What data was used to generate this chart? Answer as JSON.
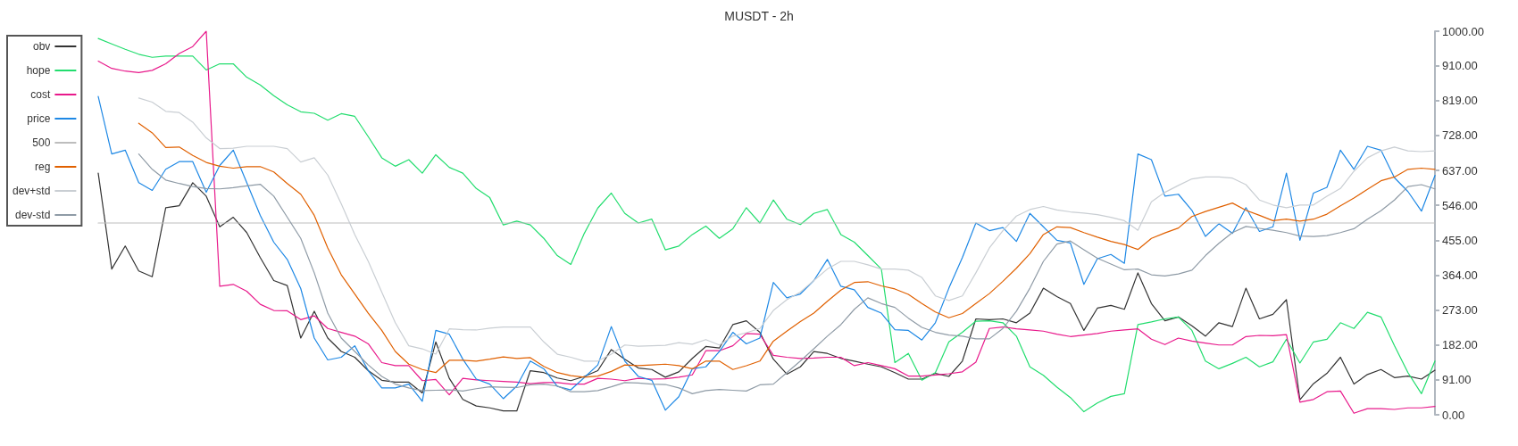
{
  "chart_data": {
    "type": "line",
    "title": "MUSDT - 2h",
    "categories": [
      null,
      null,
      null,
      null,
      null,
      null,
      null,
      null,
      null,
      null,
      null,
      null,
      null,
      null,
      null,
      null,
      null,
      null,
      null,
      null,
      null,
      null,
      null,
      null,
      null,
      null,
      null,
      null,
      null,
      null,
      null,
      null,
      null,
      null,
      null,
      null,
      null,
      null,
      null,
      null,
      null,
      null,
      null,
      null,
      null,
      null,
      null,
      null,
      null,
      null,
      null,
      null,
      null,
      null,
      null,
      null,
      null,
      null,
      null,
      null,
      null,
      null,
      null,
      null,
      null,
      null,
      null,
      null,
      null,
      null,
      null,
      null,
      null,
      null,
      null,
      null,
      null,
      null,
      null,
      null,
      null,
      null,
      null,
      null,
      null,
      null,
      null,
      null,
      null,
      null,
      null,
      null,
      null,
      null,
      null,
      null,
      null,
      null,
      null,
      null
    ],
    "series": [
      {
        "name": "obv",
        "color": "#333333",
        "values": [
          630,
          380,
          440,
          375,
          360,
          540,
          545,
          605,
          570,
          490,
          515,
          475,
          410,
          350,
          337,
          200,
          270,
          200,
          165,
          150,
          115,
          90,
          85,
          85,
          57,
          190,
          95,
          40,
          23,
          18,
          10,
          10,
          115,
          110,
          96,
          89,
          100,
          115,
          170,
          145,
          122,
          118,
          98,
          112,
          147,
          178,
          174,
          235,
          245,
          215,
          145,
          106,
          125,
          165,
          160,
          147,
          140,
          132,
          125,
          110,
          93,
          93,
          108,
          100,
          140,
          250,
          248,
          250,
          240,
          265,
          330,
          308,
          290,
          220,
          278,
          285,
          275,
          370,
          290,
          245,
          255,
          232,
          205,
          240,
          230,
          330,
          250,
          262,
          300,
          39,
          81,
          108,
          150,
          80,
          105,
          118,
          97,
          101,
          93,
          116
        ]
      },
      {
        "name": "hope",
        "color": "#22dd6e",
        "values": [
          981,
          967,
          953,
          940,
          932,
          935,
          935,
          935,
          899,
          915,
          915,
          880,
          860,
          832,
          808,
          790,
          786,
          768,
          785,
          778,
          725,
          670,
          648,
          665,
          630,
          678,
          645,
          630,
          590,
          566,
          495,
          505,
          495,
          460,
          415,
          392,
          473,
          539,
          578,
          525,
          500,
          510,
          430,
          440,
          470,
          492,
          460,
          485,
          540,
          500,
          560,
          510,
          496,
          525,
          535,
          470,
          450,
          415,
          380,
          136,
          160,
          90,
          110,
          190,
          215,
          244,
          245,
          240,
          205,
          125,
          103,
          72,
          45,
          8,
          31,
          48,
          55,
          235,
          242,
          250,
          255,
          220,
          140,
          120,
          134,
          150,
          125,
          138,
          197,
          135,
          190,
          197,
          240,
          225,
          267,
          255,
          180,
          110,
          55,
          140
        ]
      },
      {
        "name": "cost",
        "color": "#e8198b",
        "values": [
          922,
          903,
          896,
          892,
          898,
          915,
          942,
          960,
          1000,
          335,
          340,
          322,
          288,
          272,
          271,
          248,
          258,
          225,
          215,
          205,
          185,
          136,
          128,
          128,
          89,
          92,
          52,
          95,
          91,
          89,
          87,
          85,
          81,
          84,
          84,
          80,
          80,
          95,
          93,
          89,
          95,
          93,
          94,
          98,
          104,
          167,
          167,
          180,
          212,
          210,
          155,
          150,
          147,
          148,
          150,
          150,
          128,
          136,
          128,
          120,
          101,
          101,
          104,
          107,
          112,
          137,
          225,
          229,
          224,
          221,
          218,
          210,
          204,
          208,
          212,
          218,
          221,
          224,
          197,
          183,
          200,
          192,
          187,
          182,
          182,
          204,
          207,
          206,
          209,
          33,
          40,
          60,
          62,
          4,
          16,
          16,
          14,
          18,
          18,
          22
        ]
      },
      {
        "name": "price",
        "color": "#1e88e5",
        "values": [
          830,
          680,
          690,
          605,
          585,
          640,
          660,
          660,
          580,
          650,
          690,
          605,
          520,
          450,
          405,
          329,
          200,
          143,
          150,
          180,
          115,
          70,
          70,
          80,
          35,
          220,
          210,
          145,
          93,
          80,
          42,
          75,
          140,
          120,
          74,
          65,
          97,
          130,
          230,
          140,
          100,
          90,
          12,
          47,
          120,
          125,
          165,
          215,
          185,
          200,
          345,
          305,
          315,
          350,
          405,
          335,
          326,
          280,
          265,
          222,
          220,
          195,
          240,
          330,
          410,
          500,
          480,
          488,
          452,
          525,
          490,
          455,
          448,
          340,
          407,
          418,
          395,
          680,
          665,
          570,
          575,
          533,
          465,
          498,
          473,
          540,
          478,
          490,
          630,
          455,
          578,
          593,
          690,
          640,
          700,
          690,
          618,
          582,
          531,
          624
        ]
      },
      {
        "name": "500",
        "color": "#bdbdbd",
        "values": [
          500,
          500,
          500,
          500,
          500,
          500,
          500,
          500,
          500,
          500,
          500,
          500,
          500,
          500,
          500,
          500,
          500,
          500,
          500,
          500,
          500,
          500,
          500,
          500,
          500,
          500,
          500,
          500,
          500,
          500,
          500,
          500,
          500,
          500,
          500,
          500,
          500,
          500,
          500,
          500,
          500,
          500,
          500,
          500,
          500,
          500,
          500,
          500,
          500,
          500,
          500,
          500,
          500,
          500,
          500,
          500,
          500,
          500,
          500,
          500,
          500,
          500,
          500,
          500,
          500,
          500,
          500,
          500,
          500,
          500,
          500,
          500,
          500,
          500,
          500,
          500,
          500,
          500,
          500,
          500,
          500,
          500,
          500,
          500,
          500,
          500,
          500,
          500,
          500,
          500,
          500,
          500,
          500,
          500,
          500,
          500,
          500,
          500,
          500,
          500
        ]
      },
      {
        "name": "reg",
        "color": "#e06000",
        "values": [
          null,
          null,
          null,
          760,
          735,
          697,
          698,
          676,
          658,
          648,
          643,
          647,
          647,
          633,
          603,
          575,
          520,
          435,
          365,
          315,
          265,
          220,
          165,
          132,
          118,
          110,
          142,
          142,
          140,
          145,
          151,
          147,
          149,
          126,
          110,
          102,
          98,
          101,
          113,
          130,
          128,
          130,
          132,
          128,
          120,
          140,
          140,
          118,
          128,
          140,
          192,
          218,
          243,
          265,
          296,
          325,
          345,
          347,
          336,
          328,
          314,
          290,
          268,
          253,
          264,
          290,
          316,
          348,
          382,
          420,
          470,
          490,
          488,
          475,
          463,
          452,
          444,
          431,
          460,
          474,
          487,
          517,
          530,
          541,
          552,
          533,
          520,
          506,
          510,
          505,
          510,
          523,
          545,
          565,
          588,
          610,
          620,
          640,
          643,
          640
        ]
      },
      {
        "name": "dev+std",
        "color": "#c9ced3",
        "values": [
          null,
          null,
          null,
          826,
          815,
          791,
          788,
          763,
          722,
          694,
          695,
          700,
          700,
          700,
          694,
          659,
          670,
          625,
          550,
          470,
          400,
          320,
          240,
          180,
          172,
          158,
          224,
          222,
          221,
          226,
          229,
          229,
          229,
          190,
          158,
          150,
          140,
          140,
          158,
          182,
          179,
          180,
          181,
          188,
          184,
          196,
          182,
          205,
          214,
          225,
          272,
          300,
          320,
          350,
          380,
          400,
          400,
          391,
          380,
          380,
          377,
          358,
          310,
          298,
          310,
          370,
          435,
          480,
          518,
          535,
          543,
          534,
          529,
          526,
          522,
          515,
          506,
          481,
          555,
          580,
          598,
          615,
          620,
          620,
          617,
          600,
          560,
          547,
          540,
          547,
          547,
          570,
          590,
          635,
          670,
          688,
          698,
          688,
          686,
          688
        ]
      },
      {
        "name": "dev-std",
        "color": "#8f9ba6",
        "values": [
          null,
          null,
          null,
          680,
          640,
          612,
          603,
          595,
          590,
          589,
          592,
          597,
          601,
          570,
          515,
          460,
          370,
          265,
          200,
          165,
          130,
          100,
          80,
          70,
          63,
          64,
          65,
          62,
          68,
          73,
          72,
          71,
          78,
          80,
          75,
          60,
          60,
          63,
          73,
          84,
          83,
          80,
          79,
          70,
          55,
          63,
          66,
          64,
          62,
          78,
          80,
          110,
          140,
          172,
          205,
          235,
          275,
          305,
          290,
          280,
          252,
          228,
          215,
          208,
          205,
          198,
          198,
          225,
          270,
          330,
          400,
          445,
          453,
          430,
          408,
          393,
          378,
          380,
          365,
          362,
          367,
          377,
          415,
          447,
          475,
          491,
          486,
          481,
          475,
          466,
          465,
          467,
          475,
          485,
          510,
          532,
          560,
          595,
          600,
          589
        ]
      }
    ],
    "ylim": [
      0,
      1000
    ],
    "yticks": [
      {
        "value": 0,
        "label": "0.00"
      },
      {
        "value": 91,
        "label": "91.00"
      },
      {
        "value": 182,
        "label": "182.00"
      },
      {
        "value": 273,
        "label": "273.00"
      },
      {
        "value": 364,
        "label": "364.00"
      },
      {
        "value": 455,
        "label": "455.00"
      },
      {
        "value": 546,
        "label": "546.00"
      },
      {
        "value": 637,
        "label": "637.00"
      },
      {
        "value": 728,
        "label": "728.00"
      },
      {
        "value": 819,
        "label": "819.00"
      },
      {
        "value": 910,
        "label": "910.00"
      },
      {
        "value": 1000,
        "label": "1000.00"
      }
    ],
    "tick_labels": "y",
    "grid": false,
    "legend": "top left",
    "marker": "none",
    "line_style": "solid"
  }
}
